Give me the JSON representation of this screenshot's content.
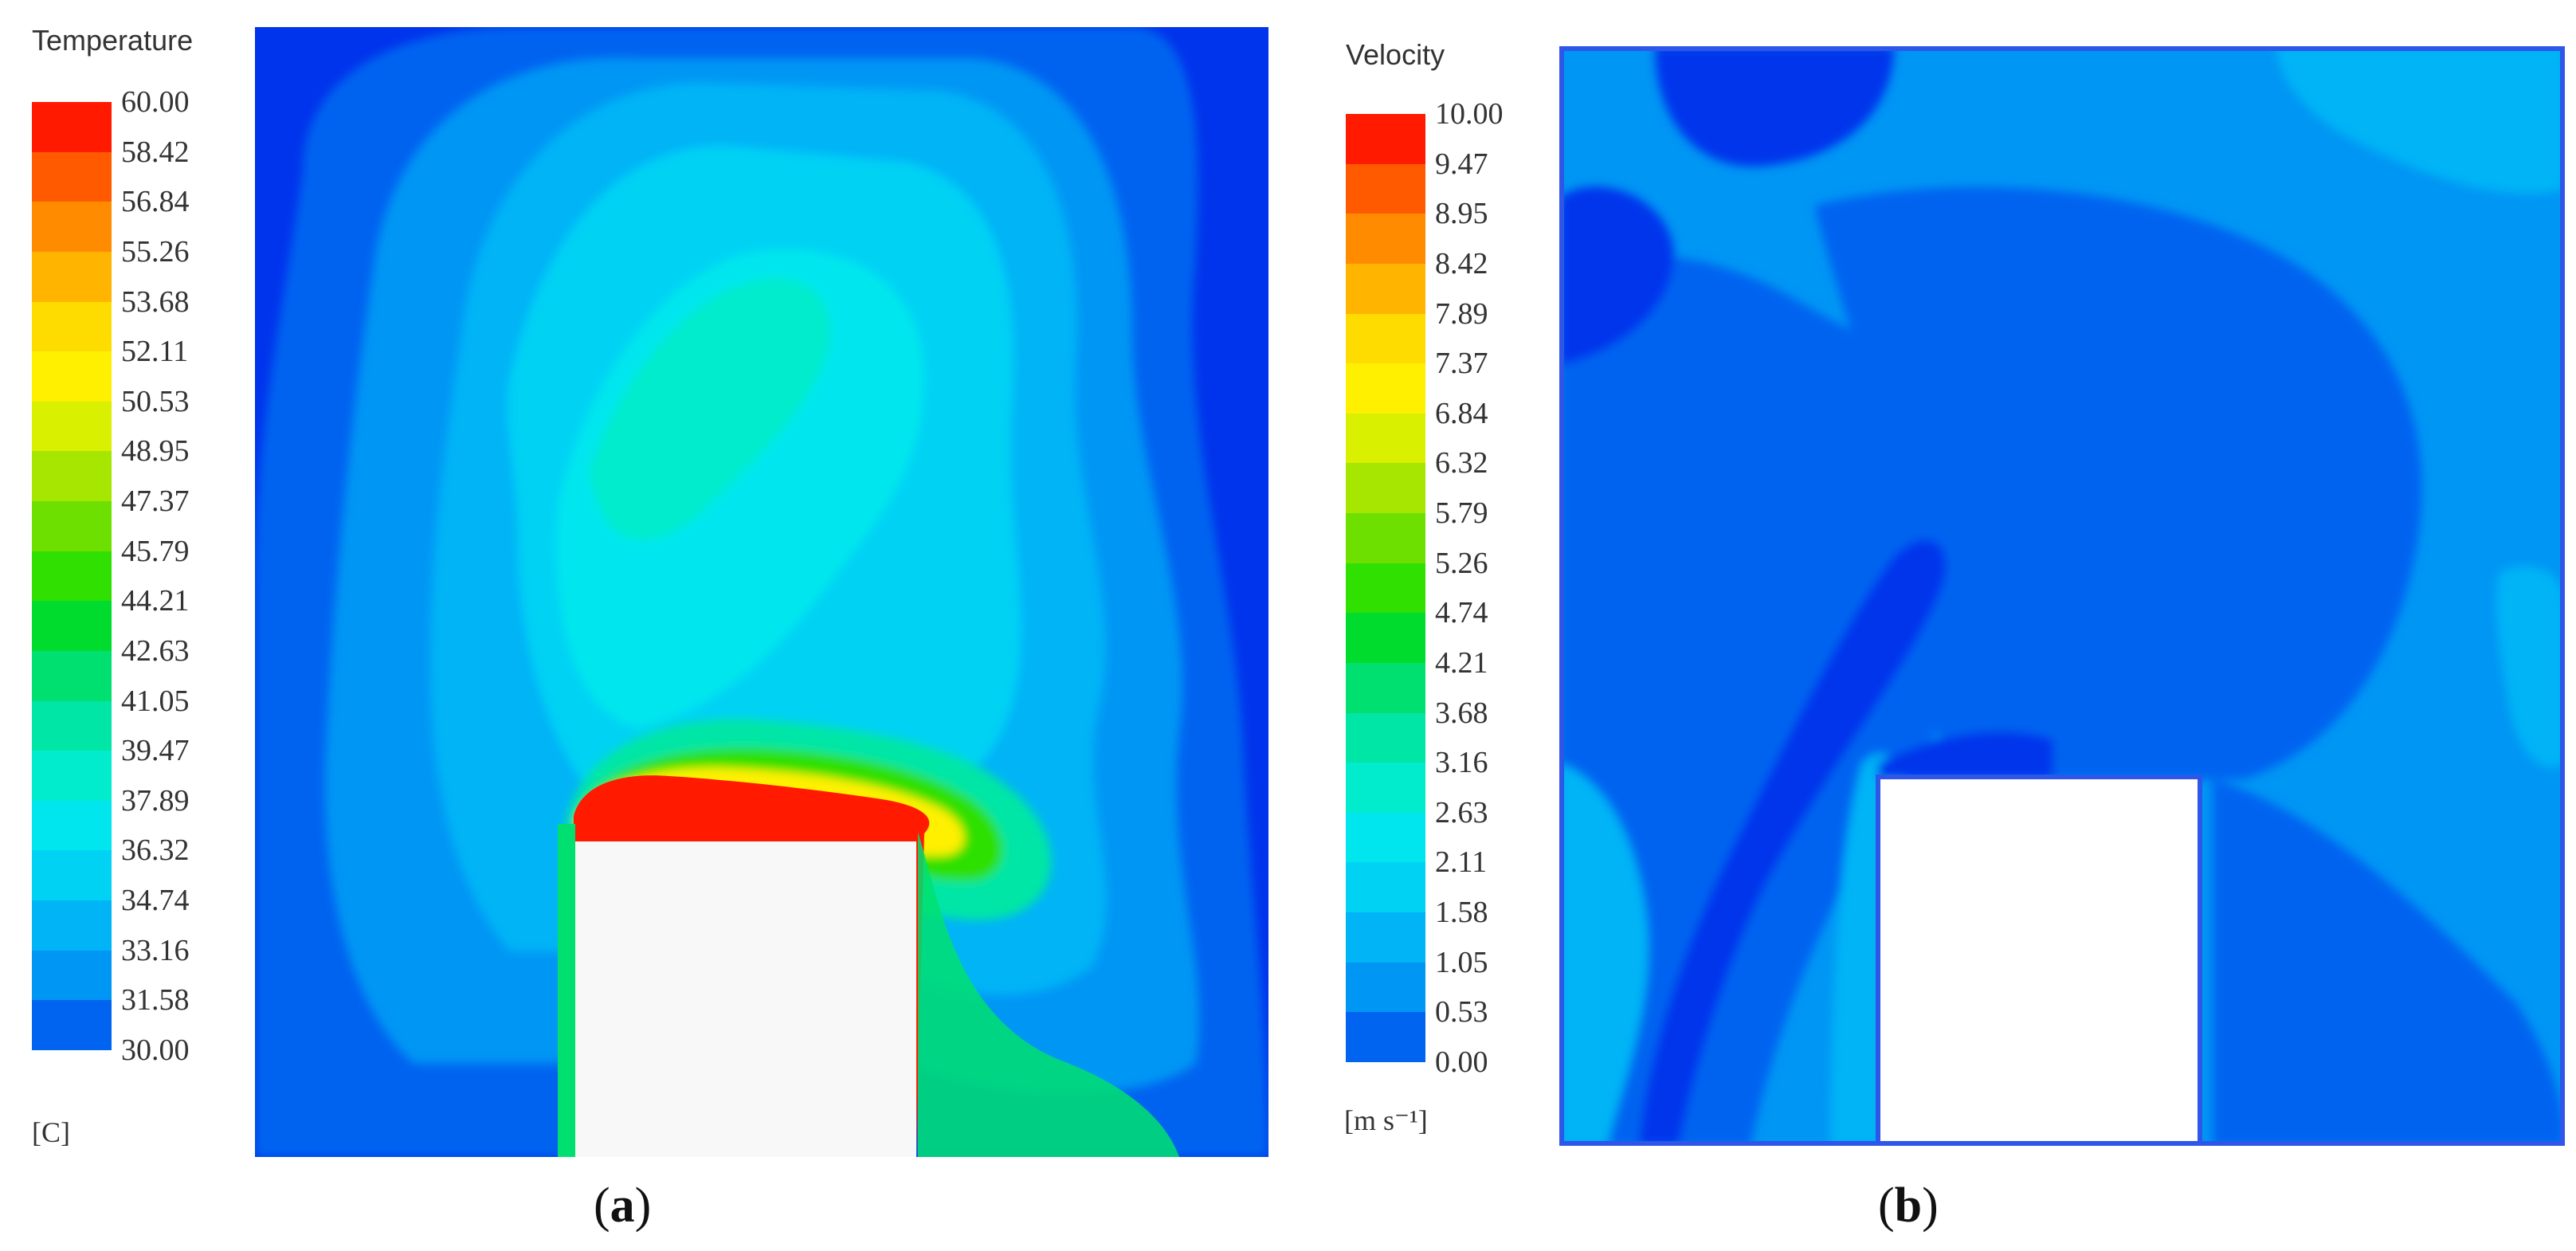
{
  "panels": [
    {
      "id": "a",
      "label_open": "(",
      "label_letter": "a",
      "label_close": ")",
      "legend": {
        "title": "Temperature",
        "unit": "[C]",
        "ticks": [
          "60.00",
          "58.42",
          "56.84",
          "55.26",
          "53.68",
          "52.11",
          "50.53",
          "48.95",
          "47.37",
          "45.79",
          "44.21",
          "42.63",
          "41.05",
          "39.47",
          "37.89",
          "36.32",
          "34.74",
          "33.16",
          "31.58",
          "30.00"
        ],
        "colors": [
          "#ff1a00",
          "#ff5a00",
          "#ff8c00",
          "#ffb400",
          "#ffdc00",
          "#fff000",
          "#d9f000",
          "#a6e600",
          "#6ee000",
          "#2fe000",
          "#00dc2e",
          "#00e070",
          "#00e6a6",
          "#00eccc",
          "#00e6ee",
          "#00d2f4",
          "#00b4f6",
          "#0096f4",
          "#0064f0",
          "#0034ec"
        ]
      }
    },
    {
      "id": "b",
      "label_open": "(",
      "label_letter": "b",
      "label_close": ")",
      "legend": {
        "title": "Velocity",
        "unit": "[m s⁻¹]",
        "ticks": [
          "10.00",
          "9.47",
          "8.95",
          "8.42",
          "7.89",
          "7.37",
          "6.84",
          "6.32",
          "5.79",
          "5.26",
          "4.74",
          "4.21",
          "3.68",
          "3.16",
          "2.63",
          "2.11",
          "1.58",
          "1.05",
          "0.53",
          "0.00"
        ],
        "colors": [
          "#ff1a00",
          "#ff5a00",
          "#ff8c00",
          "#ffb400",
          "#ffdc00",
          "#fff000",
          "#d9f000",
          "#a6e600",
          "#6ee000",
          "#2fe000",
          "#00dc2e",
          "#00e070",
          "#00e6a6",
          "#00eccc",
          "#00e6ee",
          "#00d2f4",
          "#00b4f6",
          "#0096f4",
          "#0064f0",
          "#0034ec"
        ]
      }
    }
  ]
}
